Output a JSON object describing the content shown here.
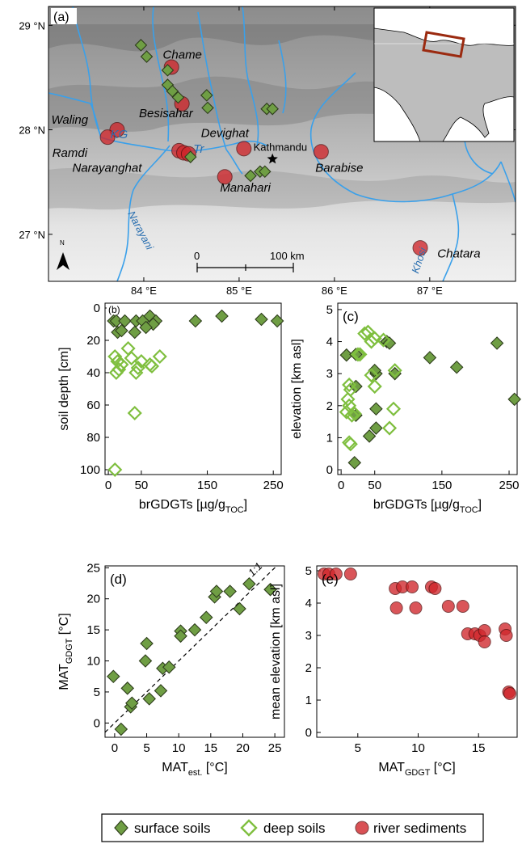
{
  "colors": {
    "surface_fill": "#6f9e44",
    "surface_stroke": "#2e3d1c",
    "deep_stroke": "#7fbf3f",
    "river_fill": "#d0262b",
    "river_stroke": "#5a1010",
    "map_bg": "#d9d9d9",
    "river_line": "#3aa0ea",
    "inset_box": "#9b2a10"
  },
  "legend": {
    "surface": "surface soils",
    "deep": "deep soils",
    "river": "river sediments"
  },
  "map": {
    "panel_label": "(a)",
    "lat_labels": [
      "29 °N",
      "28 °N",
      "27 °N"
    ],
    "lon_labels": [
      "84 °E",
      "85 °E",
      "86 °E",
      "87 °E"
    ],
    "lon_ticks": [
      84,
      85,
      86,
      87
    ],
    "lat_ticks": [
      29,
      28,
      27
    ],
    "lon_range": [
      83.0,
      87.9
    ],
    "lat_range": [
      26.55,
      29.18
    ],
    "scale_bar": {
      "zero": "0",
      "end": "100 km"
    },
    "north_label": "N",
    "places": [
      {
        "name": "Chame",
        "lon": 84.2,
        "lat": 28.68,
        "italic": true,
        "color": "#000"
      },
      {
        "name": "Besisahar",
        "lon": 83.95,
        "lat": 28.12,
        "italic": true,
        "color": "#000"
      },
      {
        "name": "Waling",
        "lon": 83.03,
        "lat": 28.06,
        "italic": true,
        "color": "#000"
      },
      {
        "name": "KG",
        "lon": 83.65,
        "lat": 27.92,
        "italic": true,
        "color": "#2a6fb0"
      },
      {
        "name": "Ramdi",
        "lon": 83.04,
        "lat": 27.74,
        "italic": true,
        "color": "#000"
      },
      {
        "name": "Devighat",
        "lon": 84.6,
        "lat": 27.93,
        "italic": true,
        "color": "#000"
      },
      {
        "name": "Kathmandu",
        "lon": 85.15,
        "lat": 27.8,
        "italic": false,
        "color": "#000"
      },
      {
        "name": "Tr",
        "lon": 84.52,
        "lat": 27.78,
        "italic": true,
        "color": "#2a6fb0"
      },
      {
        "name": "Narayanghat",
        "lon": 83.25,
        "lat": 27.6,
        "italic": true,
        "color": "#000"
      },
      {
        "name": "Barabise",
        "lon": 85.8,
        "lat": 27.6,
        "italic": true,
        "color": "#000"
      },
      {
        "name": "Manahari",
        "lon": 84.8,
        "lat": 27.41,
        "italic": true,
        "color": "#000"
      },
      {
        "name": "Chatara",
        "lon": 87.08,
        "lat": 26.78,
        "italic": true,
        "color": "#000"
      }
    ],
    "rotated_labels": [
      {
        "name": "Narayani",
        "lon": 83.83,
        "lat": 27.2,
        "angle": 62,
        "color": "#2a6fb0"
      },
      {
        "name": "Khosi",
        "lon": 86.88,
        "lat": 26.62,
        "angle": -72,
        "color": "#2a6fb0"
      }
    ],
    "river_sites": [
      {
        "lon": 84.29,
        "lat": 28.6
      },
      {
        "lon": 84.4,
        "lat": 28.25
      },
      {
        "lon": 83.72,
        "lat": 28.0
      },
      {
        "lon": 83.62,
        "lat": 27.93
      },
      {
        "lon": 84.37,
        "lat": 27.8
      },
      {
        "lon": 84.42,
        "lat": 27.78
      },
      {
        "lon": 84.47,
        "lat": 27.77
      },
      {
        "lon": 85.05,
        "lat": 27.82
      },
      {
        "lon": 84.85,
        "lat": 27.55
      },
      {
        "lon": 85.86,
        "lat": 27.79
      },
      {
        "lon": 86.9,
        "lat": 26.87
      }
    ],
    "surface_sites": [
      {
        "lon": 83.97,
        "lat": 28.81
      },
      {
        "lon": 84.03,
        "lat": 28.7
      },
      {
        "lon": 84.25,
        "lat": 28.57
      },
      {
        "lon": 84.25,
        "lat": 28.43
      },
      {
        "lon": 84.3,
        "lat": 28.37
      },
      {
        "lon": 84.36,
        "lat": 28.31
      },
      {
        "lon": 84.66,
        "lat": 28.33
      },
      {
        "lon": 84.67,
        "lat": 28.21
      },
      {
        "lon": 85.29,
        "lat": 28.2
      },
      {
        "lon": 85.35,
        "lat": 28.2
      },
      {
        "lon": 84.49,
        "lat": 27.74
      },
      {
        "lon": 85.12,
        "lat": 27.56
      },
      {
        "lon": 85.22,
        "lat": 27.6
      },
      {
        "lon": 85.27,
        "lat": 27.6
      }
    ],
    "kathmandu_star": {
      "lon": 85.35,
      "lat": 27.72
    }
  },
  "chart_data": [
    {
      "id": "b",
      "type": "scatter",
      "panel_label": "(b)",
      "xlabel": "brGDGTs [µg/g",
      "xlabel_sub": "TOC",
      "xlabel_end": "]",
      "ylabel": "soil depth [cm]",
      "xlim": [
        -5,
        262
      ],
      "ylim": [
        103,
        -3
      ],
      "y_inverted": true,
      "xticks": [
        0,
        50,
        150,
        250
      ],
      "xtick_labels": [
        "0",
        "50",
        "150",
        "250"
      ],
      "yticks": [
        0,
        20,
        40,
        60,
        80,
        100
      ],
      "ytick_labels": [
        "0",
        "20",
        "40",
        "60",
        "80",
        "100"
      ],
      "series": [
        {
          "name": "surface soils",
          "marker": "surface",
          "points": [
            [
              8,
              8
            ],
            [
              12,
              8
            ],
            [
              25,
              8
            ],
            [
              42,
              8
            ],
            [
              52,
              8
            ],
            [
              63,
              5
            ],
            [
              72,
              8
            ],
            [
              132,
              8
            ],
            [
              172,
              5
            ],
            [
              232,
              7
            ],
            [
              256,
              8
            ],
            [
              14,
              15
            ],
            [
              20,
              14
            ],
            [
              40,
              15
            ],
            [
              68,
              10
            ],
            [
              57,
              12
            ]
          ]
        },
        {
          "name": "deep soils",
          "marker": "deep",
          "points": [
            [
              10,
              30
            ],
            [
              14,
              33
            ],
            [
              16,
              38
            ],
            [
              12,
              40
            ],
            [
              20,
              35
            ],
            [
              30,
              25
            ],
            [
              35,
              31
            ],
            [
              45,
              37
            ],
            [
              42,
              40
            ],
            [
              50,
              33
            ],
            [
              63,
              35
            ],
            [
              66,
              36
            ],
            [
              78,
              30
            ],
            [
              40,
              65
            ],
            [
              10,
              100
            ]
          ]
        }
      ]
    },
    {
      "id": "c",
      "type": "scatter",
      "panel_label": "(c)",
      "xlabel": "brGDGTs [µg/g",
      "xlabel_sub": "TOC",
      "xlabel_end": "]",
      "ylabel": "elevation [km asl]",
      "xlim": [
        -5,
        262
      ],
      "ylim": [
        -0.15,
        5.2
      ],
      "xticks": [
        0,
        50,
        150,
        250
      ],
      "xtick_labels": [
        "0",
        "50",
        "150",
        "250"
      ],
      "yticks": [
        0,
        1,
        2,
        3,
        4,
        5
      ],
      "ytick_labels": [
        "0",
        "1",
        "2",
        "3",
        "4",
        "5"
      ],
      "series": [
        {
          "name": "surface soils",
          "marker": "surface",
          "points": [
            [
              8,
              3.58
            ],
            [
              22,
              3.6
            ],
            [
              52,
              3.0
            ],
            [
              50,
              3.1
            ],
            [
              68,
              4.0
            ],
            [
              72,
              3.95
            ],
            [
              80,
              3.0
            ],
            [
              132,
              3.5
            ],
            [
              172,
              3.2
            ],
            [
              232,
              3.95
            ],
            [
              258,
              2.2
            ],
            [
              22,
              2.6
            ],
            [
              52,
              1.9
            ],
            [
              52,
              1.3
            ],
            [
              42,
              1.05
            ],
            [
              22,
              1.7
            ],
            [
              20,
              0.22
            ]
          ]
        },
        {
          "name": "deep soils",
          "marker": "deep",
          "points": [
            [
              25,
              3.6
            ],
            [
              28,
              3.6
            ],
            [
              35,
              4.25
            ],
            [
              40,
              4.3
            ],
            [
              45,
              4.0
            ],
            [
              50,
              4.1
            ],
            [
              63,
              4.05
            ],
            [
              12,
              2.65
            ],
            [
              14,
              2.5
            ],
            [
              10,
              2.2
            ],
            [
              12,
              2.0
            ],
            [
              8,
              1.8
            ],
            [
              16,
              1.7
            ],
            [
              20,
              1.75
            ],
            [
              45,
              2.95
            ],
            [
              50,
              2.6
            ],
            [
              80,
              3.1
            ],
            [
              78,
              1.9
            ],
            [
              72,
              1.3
            ],
            [
              12,
              0.85
            ],
            [
              14,
              0.8
            ]
          ]
        }
      ]
    },
    {
      "id": "d",
      "type": "scatter",
      "panel_label": "(d)",
      "xlabel": "MAT",
      "xlabel_sub": "est.",
      "xlabel_end": " [°C]",
      "ylabel": "MAT",
      "ylabel_sub": "GDGT",
      "ylabel_end": " [°C]",
      "xlim": [
        -1.5,
        26.5
      ],
      "ylim": [
        -2.3,
        25.3
      ],
      "xticks": [
        0,
        5,
        10,
        15,
        20,
        25
      ],
      "xtick_labels": [
        "0",
        "5",
        "10",
        "15",
        "20",
        "25"
      ],
      "yticks": [
        0,
        5,
        10,
        15,
        20,
        25
      ],
      "ytick_labels": [
        "0",
        "5",
        "10",
        "15",
        "20",
        "25"
      ],
      "one_to_one_label": "1:1",
      "series": [
        {
          "name": "surface soils",
          "marker": "surface",
          "points": [
            [
              -0.2,
              7.5
            ],
            [
              1.0,
              -1.0
            ],
            [
              2.0,
              5.6
            ],
            [
              2.5,
              2.6
            ],
            [
              2.7,
              3.2
            ],
            [
              4.8,
              10.0
            ],
            [
              5.0,
              12.8
            ],
            [
              5.4,
              3.9
            ],
            [
              7.2,
              5.2
            ],
            [
              7.5,
              8.8
            ],
            [
              8.5,
              9.0
            ],
            [
              10.3,
              14.8
            ],
            [
              10.3,
              14.0
            ],
            [
              12.5,
              15.0
            ],
            [
              14.3,
              17.0
            ],
            [
              15.6,
              20.3
            ],
            [
              15.9,
              21.2
            ],
            [
              18.0,
              21.2
            ],
            [
              19.5,
              18.4
            ],
            [
              21.0,
              22.4
            ],
            [
              24.3,
              21.5
            ]
          ]
        }
      ]
    },
    {
      "id": "e",
      "type": "scatter",
      "panel_label": "(e)",
      "xlabel": "MAT",
      "xlabel_sub": "GDGT",
      "xlabel_end": " [°C]",
      "ylabel": "mean elevation [km asl]",
      "xlim": [
        1.6,
        18.2
      ],
      "ylim": [
        -0.15,
        5.15
      ],
      "xticks": [
        5,
        10,
        15
      ],
      "xtick_labels": [
        "5",
        "10",
        "15"
      ],
      "yticks": [
        0,
        1,
        2,
        3,
        4,
        5
      ],
      "ytick_labels": [
        "0",
        "1",
        "2",
        "3",
        "4",
        "5"
      ],
      "series": [
        {
          "name": "river sediments",
          "marker": "river",
          "points": [
            [
              2.2,
              4.9
            ],
            [
              2.6,
              4.9
            ],
            [
              3.2,
              4.9
            ],
            [
              4.4,
              4.9
            ],
            [
              8.1,
              4.45
            ],
            [
              8.7,
              4.5
            ],
            [
              9.5,
              4.5
            ],
            [
              11.1,
              4.5
            ],
            [
              11.4,
              4.45
            ],
            [
              8.2,
              3.85
            ],
            [
              9.8,
              3.85
            ],
            [
              12.5,
              3.9
            ],
            [
              13.7,
              3.9
            ],
            [
              14.1,
              3.05
            ],
            [
              14.7,
              3.05
            ],
            [
              15.1,
              3.0
            ],
            [
              15.5,
              3.15
            ],
            [
              15.5,
              2.8
            ],
            [
              17.2,
              3.2
            ],
            [
              17.3,
              3.0
            ],
            [
              17.5,
              1.25
            ],
            [
              17.6,
              1.2
            ]
          ]
        }
      ]
    }
  ]
}
